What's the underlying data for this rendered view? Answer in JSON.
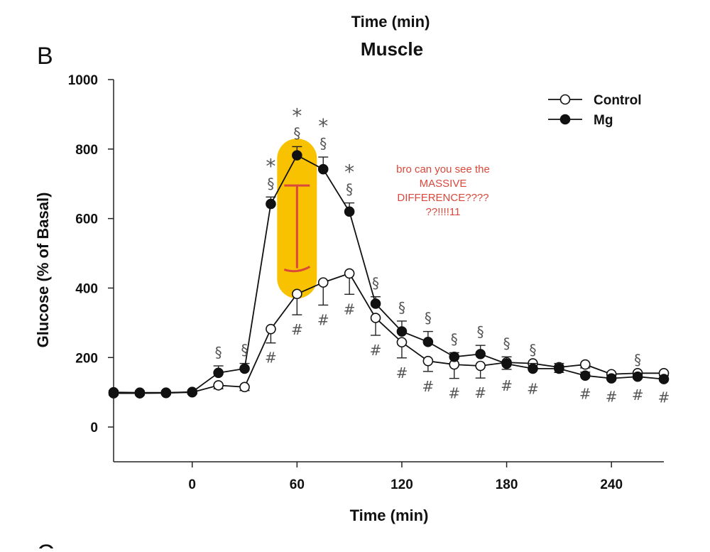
{
  "chart_data": {
    "type": "line",
    "top_caption": "Time (min)",
    "panel_letter": "B",
    "next_panel_letter": "C",
    "title": "Muscle",
    "xlabel": "Time (min)",
    "ylabel": "Glucose (% of Basal)",
    "xlim": [
      -45,
      270
    ],
    "ylim": [
      -100,
      1000
    ],
    "xticks": [
      0,
      60,
      120,
      180,
      240
    ],
    "yticks": [
      0,
      200,
      400,
      600,
      800,
      1000
    ],
    "grid": false,
    "legend_position": "top-right",
    "x": [
      -45,
      -30,
      -15,
      0,
      15,
      30,
      45,
      60,
      75,
      90,
      105,
      120,
      135,
      150,
      165,
      180,
      195,
      210,
      225,
      240,
      255,
      270
    ],
    "series": [
      {
        "name": "Control",
        "marker": "open-circle",
        "values": [
          97,
          97,
          98,
          100,
          120,
          115,
          282,
          383,
          416,
          442,
          314,
          244,
          190,
          180,
          176,
          186,
          183,
          172,
          180,
          152,
          155,
          155
        ],
        "errors": [
          5,
          5,
          5,
          5,
          10,
          10,
          40,
          60,
          65,
          60,
          50,
          45,
          30,
          40,
          35,
          20,
          15,
          15,
          10,
          15,
          15,
          15
        ]
      },
      {
        "name": "Mg",
        "marker": "filled-circle",
        "values": [
          100,
          99,
          99,
          101,
          156,
          168,
          642,
          782,
          742,
          620,
          355,
          275,
          245,
          202,
          210,
          182,
          168,
          168,
          148,
          140,
          145,
          138
        ],
        "errors": [
          5,
          5,
          5,
          5,
          20,
          15,
          20,
          25,
          35,
          25,
          20,
          30,
          30,
          12,
          25,
          20,
          15,
          15,
          10,
          10,
          10,
          10
        ]
      }
    ],
    "significance": {
      "star": "*",
      "section": "§",
      "hash": "#",
      "star_x": [
        45,
        60,
        75,
        90
      ],
      "section_x": [
        15,
        30,
        45,
        60,
        75,
        90,
        105,
        120,
        135,
        150,
        165,
        180,
        195,
        255
      ],
      "hash_x": [
        45,
        60,
        75,
        90,
        105,
        120,
        135,
        150,
        165,
        180,
        195,
        225,
        240,
        255,
        270
      ]
    },
    "annotation": {
      "lines": [
        "bro can you see the",
        "MASSIVE",
        "DIFFERENCE????",
        "??!!!!11"
      ],
      "color": "#d9483b",
      "highlight_color": "#f9c200",
      "highlight_x": 60,
      "highlight_range": [
        370,
        830
      ],
      "bracket_range": [
        445,
        695
      ]
    }
  }
}
